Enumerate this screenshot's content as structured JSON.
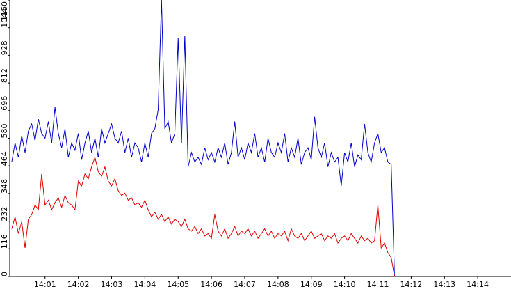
{
  "chart_data": {
    "type": "line",
    "x": [
      840.0,
      840.1,
      840.2,
      840.3,
      840.4,
      840.5,
      840.6,
      840.7,
      840.8,
      840.9,
      841.0,
      841.1,
      841.2,
      841.3,
      841.4,
      841.5,
      841.6,
      841.7,
      841.8,
      841.9,
      842.0,
      842.1,
      842.2,
      842.3,
      842.4,
      842.5,
      842.6,
      842.7,
      842.8,
      842.9,
      843.0,
      843.1,
      843.2,
      843.3,
      843.4,
      843.5,
      843.6,
      843.7,
      843.8,
      843.9,
      844.0,
      844.1,
      844.2,
      844.3,
      844.4,
      844.5,
      844.6,
      844.7,
      844.8,
      844.9,
      845.0,
      845.1,
      845.2,
      845.3,
      845.4,
      845.5,
      845.6,
      845.7,
      845.8,
      845.9,
      846.0,
      846.1,
      846.2,
      846.3,
      846.4,
      846.5,
      846.6,
      846.7,
      846.8,
      846.9,
      847.0,
      847.1,
      847.2,
      847.3,
      847.4,
      847.5,
      847.6,
      847.7,
      847.8,
      847.9,
      848.0,
      848.1,
      848.2,
      848.3,
      848.4,
      848.5,
      848.6,
      848.7,
      848.8,
      848.9,
      849.0,
      849.1,
      849.2,
      849.3,
      849.4,
      849.5,
      849.6,
      849.7,
      849.8,
      849.9,
      850.0,
      850.1,
      850.2,
      850.3,
      850.4,
      850.5,
      850.6,
      850.7,
      850.8,
      850.9,
      851.0,
      851.1,
      851.2,
      851.3,
      851.4,
      851.5
    ],
    "series": [
      {
        "color": "#0000cc",
        "values": [
          480,
          560,
          500,
          590,
          520,
          610,
          640,
          570,
          660,
          600,
          580,
          650,
          560,
          710,
          600,
          540,
          620,
          500,
          560,
          530,
          600,
          490,
          560,
          610,
          520,
          580,
          500,
          620,
          560,
          600,
          640,
          580,
          560,
          610,
          520,
          580,
          500,
          560,
          540,
          480,
          560,
          500,
          600,
          620,
          700,
          1160,
          620,
          650,
          560,
          600,
          1000,
          560,
          1010,
          460,
          520,
          480,
          500,
          470,
          540,
          490,
          520,
          480,
          540,
          500,
          560,
          470,
          520,
          650,
          500,
          540,
          490,
          560,
          520,
          600,
          500,
          540,
          480,
          580,
          520,
          500,
          560,
          520,
          600,
          480,
          540,
          500,
          580,
          470,
          520,
          540,
          490,
          670,
          540,
          500,
          560,
          460,
          520,
          480,
          500,
          380,
          520,
          480,
          560,
          460,
          510,
          490,
          640,
          520,
          480,
          560,
          600,
          520,
          540,
          480,
          470,
          0
        ]
      },
      {
        "color": "#dd0000",
        "values": [
          200,
          250,
          180,
          230,
          120,
          240,
          260,
          300,
          280,
          430,
          300,
          320,
          280,
          310,
          330,
          290,
          340,
          310,
          300,
          280,
          400,
          380,
          430,
          410,
          460,
          500,
          440,
          420,
          460,
          400,
          380,
          410,
          360,
          340,
          350,
          320,
          330,
          300,
          310,
          290,
          320,
          280,
          250,
          270,
          240,
          260,
          230,
          250,
          220,
          240,
          230,
          210,
          240,
          200,
          190,
          210,
          180,
          200,
          170,
          180,
          160,
          260,
          190,
          170,
          200,
          160,
          180,
          210,
          170,
          190,
          180,
          200,
          170,
          190,
          160,
          180,
          200,
          170,
          190,
          160,
          180,
          170,
          190,
          150,
          200,
          170,
          160,
          180,
          150,
          170,
          190,
          160,
          170,
          180,
          150,
          170,
          160,
          180,
          140,
          160,
          170,
          150,
          180,
          160,
          140,
          170,
          150,
          160,
          140,
          150,
          300,
          120,
          140,
          100,
          80,
          0
        ]
      }
    ],
    "xlim": [
      839.94,
      855
    ],
    "ylim": [
      0,
      1160
    ],
    "yticks": [
      0,
      116,
      232,
      348,
      464,
      580,
      696,
      812,
      928,
      1044,
      1160
    ],
    "xticks": [
      {
        "value": 841,
        "label": "14:01"
      },
      {
        "value": 842,
        "label": "14:02"
      },
      {
        "value": 843,
        "label": "14:03"
      },
      {
        "value": 844,
        "label": "14:04"
      },
      {
        "value": 845,
        "label": "14:05"
      },
      {
        "value": 846,
        "label": "14:06"
      },
      {
        "value": 847,
        "label": "14:07"
      },
      {
        "value": 848,
        "label": "14:08"
      },
      {
        "value": 849,
        "label": "14:09"
      },
      {
        "value": 850,
        "label": "14:10"
      },
      {
        "value": 851,
        "label": "14:11"
      },
      {
        "value": 852,
        "label": "14:12"
      },
      {
        "value": 853,
        "label": "14:13"
      },
      {
        "value": 854,
        "label": "14:14"
      }
    ]
  }
}
